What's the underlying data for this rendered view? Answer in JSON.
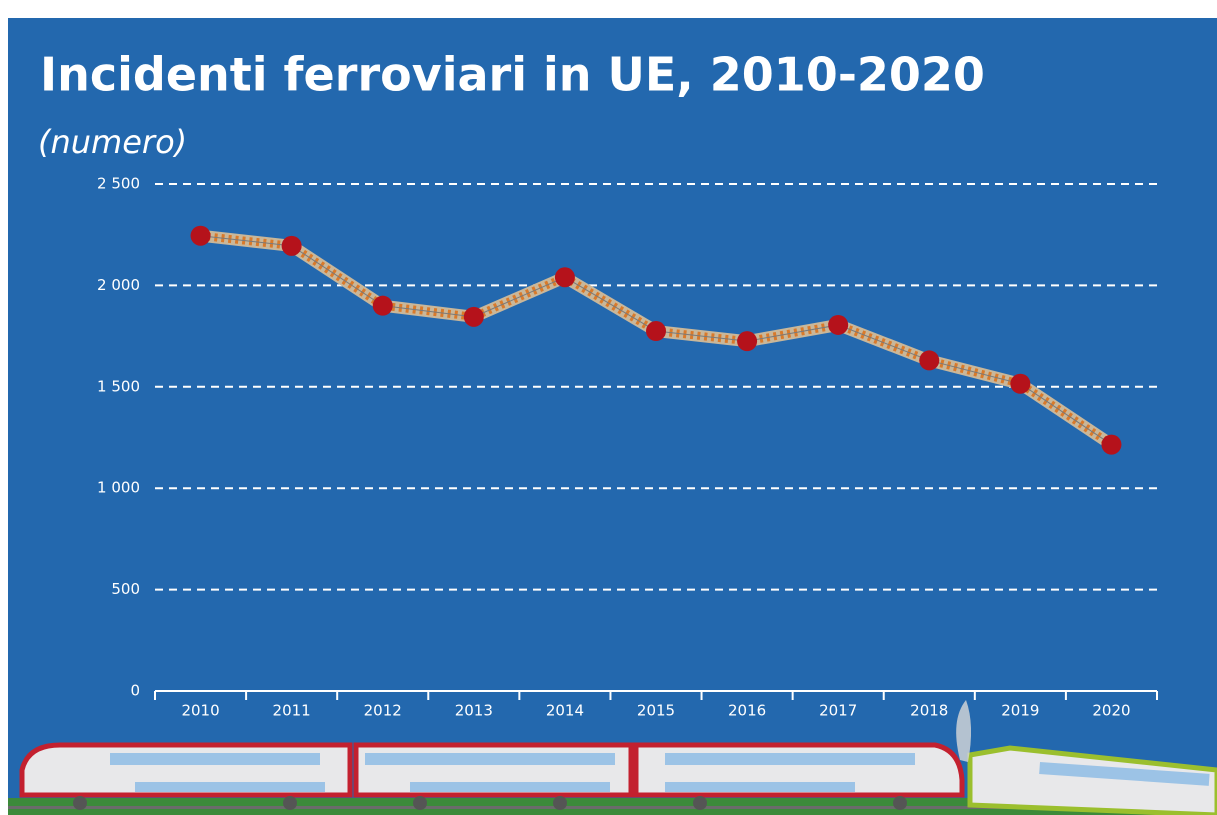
{
  "chart_data": {
    "type": "line",
    "title": "Incidenti ferroviari in UE, 2010-2020",
    "subtitle": "(numero)",
    "categories": [
      "2010",
      "2011",
      "2012",
      "2013",
      "2014",
      "2015",
      "2016",
      "2017",
      "2018",
      "2019",
      "2020"
    ],
    "values": [
      2245,
      2195,
      1900,
      1845,
      2040,
      1775,
      1725,
      1805,
      1630,
      1515,
      1215
    ],
    "color": "#b5121b",
    "ylim": [
      0,
      2500
    ],
    "yticks": [
      0,
      500,
      {
        "value": 1000,
        "label": "1 000"
      },
      {
        "value": 1500,
        "label": "1 500"
      },
      {
        "value": 2000,
        "label": "2 000"
      },
      {
        "value": 2500,
        "label": "2 500"
      }
    ],
    "grid": true
  }
}
